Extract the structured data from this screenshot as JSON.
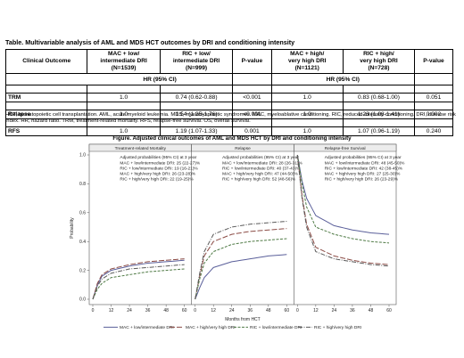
{
  "table": {
    "title": "Table. Multivariable analysis of AML and MDS HCT outcomes by DRI and conditioning intensity",
    "headers": {
      "outcome": "Clinical Outcome",
      "mac_low": [
        "MAC + low/",
        "intermediate DRI",
        "(N=1539)"
      ],
      "ric_low": [
        "RIC + low/",
        "intermediate DRI",
        "(N=999)"
      ],
      "pvalue": "P-value",
      "mac_high": [
        "MAC + high/",
        "very high DRI",
        "(N=1121)"
      ],
      "ric_high": [
        "RIC + high/",
        "very high DRI",
        "(N=728)"
      ]
    },
    "hr_label": "HR (95% CI)",
    "rows": [
      {
        "outcome": "TRM",
        "mac_low": "1.0",
        "ric_low": "0.74 (0.62-0.88)",
        "p1": "<0.001",
        "mac_high": "1.0",
        "ric_high": "0.83 (0.68-1.00)",
        "p2": "0.051"
      },
      {
        "outcome": "Relapse",
        "mac_low": "1.0",
        "ric_low": "1.54 (1.35-1.76)",
        "p1": "<0.001",
        "mac_high": "1.0",
        "ric_high": "1.23 (1.08-1.41)",
        "p2": "0.002"
      },
      {
        "outcome": "RFS",
        "mac_low": "1.0",
        "ric_low": "1.19 (1.07-1.33)",
        "p1": "0.001",
        "mac_high": "1.0",
        "ric_high": "1.07 (0.96-1.19)",
        "p2": "0.240"
      }
    ],
    "footnote": "HCT, hematopoietic cell transplantation. AML, acute myeloid leukemia. MDS, myelodysplastic syndromes.  MAC, myeloablative conditioning. RIC, reduced-intensity conditioning. DRI, disease risk index. HR, hazard ratio. TRM, treatment-related mortality. RFS, relapse-free survival. OS, overall survival."
  },
  "figure": {
    "title": "Figure. Adjusted clinical outcomes of AML and MDS HCT by DRI and conditioning intensity",
    "y_label": "Probability",
    "x_label": "Months from HCT",
    "y_ticks": [
      "1.0",
      "0.8",
      "0.6",
      "0.4",
      "0.2",
      "0.0"
    ],
    "x_ticks": [
      "0",
      "12",
      "24",
      "36",
      "48",
      "60"
    ],
    "panels": [
      {
        "title": "Treatment-related Mortality",
        "box_title": "Adjusted probabilities (95% CI) at 3 year",
        "box_lines": [
          "MAC + low/intermediate DRI: 25 (22-27)%",
          "RIC + low/intermediate DRI: 19 (16-21)%",
          "MAC + high/very high DRI: 26 (23-28)%",
          "RIC + high/very high DRI: 22 (19-25)%"
        ]
      },
      {
        "title": "Relapse",
        "box_title": "Adjusted probabilities (95% CI) at 3 year",
        "box_lines": [
          "MAC + low/intermediate DRI: 28 (26-31)%",
          "RIC + low/intermediate DRI: 40 (37-43)%",
          "MAC + high/very high DRI: 47 (44-50)%",
          "RIC + high/very high DRI: 52 (48-56)%"
        ]
      },
      {
        "title": "Relapse-free Survival",
        "box_title": "Adjusted probabilities (95% CI) at 3 year",
        "box_lines": [
          "MAC + low/intermediate DRI: 48 (45-50)%",
          "RIC + low/intermediate DRI: 42 (38-45)%",
          "MAC + high/very high DRI: 27 (25-30)%",
          "RIC + high/very high DRI: 26 (23-29)%"
        ]
      }
    ],
    "legend": [
      "MAC + low/intermediate DRI",
      "MAC + high/very high DRI",
      "RIC + low/intermediate DRI",
      "RIC + high/very high DRI"
    ],
    "series_colors": [
      "#5a5f9a",
      "#8b4b45",
      "#4f7a45",
      "#5a5a5a"
    ]
  },
  "chart_data": [
    {
      "type": "line",
      "title": "Treatment-related Mortality",
      "xlabel": "Months from HCT",
      "ylabel": "Probability",
      "xlim": [
        0,
        60
      ],
      "ylim": [
        0,
        1.0
      ],
      "series": [
        {
          "name": "MAC + low/intermediate DRI",
          "x": [
            0,
            3,
            6,
            12,
            24,
            36,
            48,
            60
          ],
          "y": [
            0,
            0.1,
            0.16,
            0.2,
            0.23,
            0.25,
            0.26,
            0.27
          ]
        },
        {
          "name": "MAC + high/very high DRI",
          "x": [
            0,
            3,
            6,
            12,
            24,
            36,
            48,
            60
          ],
          "y": [
            0,
            0.11,
            0.17,
            0.21,
            0.24,
            0.26,
            0.27,
            0.28
          ]
        },
        {
          "name": "RIC + low/intermediate DRI",
          "x": [
            0,
            3,
            6,
            12,
            24,
            36,
            48,
            60
          ],
          "y": [
            0,
            0.07,
            0.11,
            0.15,
            0.17,
            0.19,
            0.2,
            0.21
          ]
        },
        {
          "name": "RIC + high/very high DRI",
          "x": [
            0,
            3,
            6,
            12,
            24,
            36,
            48,
            60
          ],
          "y": [
            0,
            0.09,
            0.14,
            0.18,
            0.21,
            0.22,
            0.23,
            0.24
          ]
        }
      ]
    },
    {
      "type": "line",
      "title": "Relapse",
      "xlabel": "Months from HCT",
      "ylabel": "Probability",
      "xlim": [
        0,
        60
      ],
      "ylim": [
        0,
        1.0
      ],
      "series": [
        {
          "name": "MAC + low/intermediate DRI",
          "x": [
            0,
            3,
            6,
            12,
            24,
            36,
            48,
            60
          ],
          "y": [
            0,
            0.08,
            0.15,
            0.22,
            0.26,
            0.28,
            0.3,
            0.31
          ]
        },
        {
          "name": "MAC + high/very high DRI",
          "x": [
            0,
            3,
            6,
            12,
            24,
            36,
            48,
            60
          ],
          "y": [
            0,
            0.16,
            0.3,
            0.4,
            0.45,
            0.47,
            0.48,
            0.49
          ]
        },
        {
          "name": "RIC + low/intermediate DRI",
          "x": [
            0,
            3,
            6,
            12,
            24,
            36,
            48,
            60
          ],
          "y": [
            0,
            0.14,
            0.25,
            0.33,
            0.38,
            0.4,
            0.41,
            0.42
          ]
        },
        {
          "name": "RIC + high/very high DRI",
          "x": [
            0,
            3,
            6,
            12,
            24,
            36,
            48,
            60
          ],
          "y": [
            0,
            0.18,
            0.33,
            0.45,
            0.5,
            0.52,
            0.53,
            0.54
          ]
        }
      ]
    },
    {
      "type": "line",
      "title": "Relapse-free Survival",
      "xlabel": "Months from HCT",
      "ylabel": "Probability",
      "xlim": [
        0,
        60
      ],
      "ylim": [
        0,
        1.0
      ],
      "series": [
        {
          "name": "MAC + low/intermediate DRI",
          "x": [
            0,
            3,
            6,
            12,
            24,
            36,
            48,
            60
          ],
          "y": [
            1.0,
            0.82,
            0.7,
            0.58,
            0.51,
            0.48,
            0.46,
            0.45
          ]
        },
        {
          "name": "MAC + high/very high DRI",
          "x": [
            0,
            3,
            6,
            12,
            24,
            36,
            48,
            60
          ],
          "y": [
            1.0,
            0.72,
            0.52,
            0.36,
            0.3,
            0.27,
            0.25,
            0.24
          ]
        },
        {
          "name": "RIC + low/intermediate DRI",
          "x": [
            0,
            3,
            6,
            12,
            24,
            36,
            48,
            60
          ],
          "y": [
            1.0,
            0.8,
            0.64,
            0.5,
            0.45,
            0.42,
            0.4,
            0.39
          ]
        },
        {
          "name": "RIC + high/very high DRI",
          "x": [
            0,
            3,
            6,
            12,
            24,
            36,
            48,
            60
          ],
          "y": [
            1.0,
            0.7,
            0.5,
            0.33,
            0.28,
            0.26,
            0.24,
            0.23
          ]
        }
      ]
    }
  ]
}
